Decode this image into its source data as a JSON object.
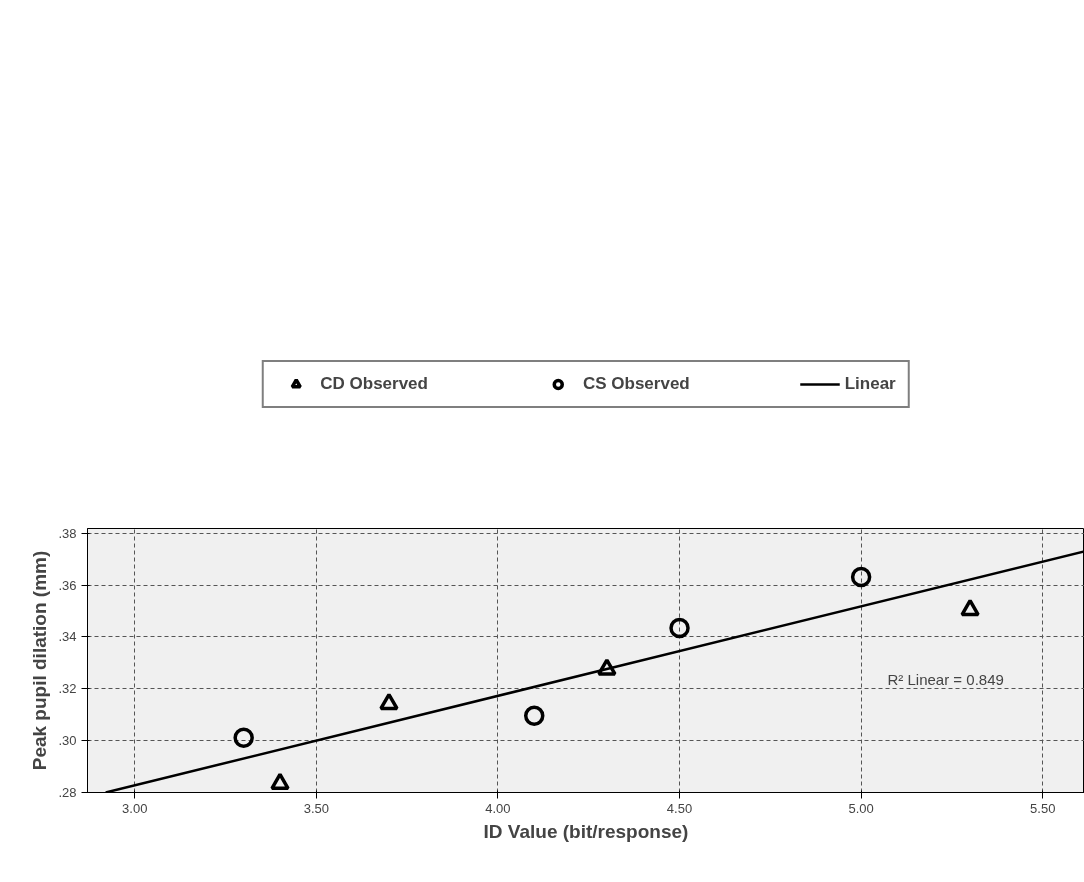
{
  "chart_data": {
    "type": "scatter",
    "xlabel": "ID Value (bit/response)",
    "ylabel": "Peak pupil dilation (mm)",
    "xlim": [
      2.87,
      5.615
    ],
    "ylim": [
      0.28,
      0.3818
    ],
    "xticks": [
      {
        "value": 3.0,
        "label": "3.00"
      },
      {
        "value": 3.5,
        "label": "3.50"
      },
      {
        "value": 4.0,
        "label": "4.00"
      },
      {
        "value": 4.5,
        "label": "4.50"
      },
      {
        "value": 5.0,
        "label": "5.00"
      },
      {
        "value": 5.5,
        "label": "5.50"
      }
    ],
    "yticks": [
      {
        "value": 0.28,
        "label": ".28"
      },
      {
        "value": 0.3,
        "label": ".30"
      },
      {
        "value": 0.32,
        "label": ".32"
      },
      {
        "value": 0.34,
        "label": ".34"
      },
      {
        "value": 0.36,
        "label": ".36"
      },
      {
        "value": 0.38,
        "label": ".38"
      }
    ],
    "grid": true,
    "legend": "top",
    "series": [
      {
        "name": "CD Observed",
        "marker": "triangle",
        "color": "#000000",
        "x": [
          3.4,
          3.7,
          4.3,
          5.3
        ],
        "values": [
          0.2834,
          0.3142,
          0.3275,
          0.3504
        ]
      },
      {
        "name": "CS Observed",
        "marker": "circle",
        "color": "#000000",
        "x": [
          3.3,
          4.1,
          4.5,
          5.0
        ],
        "values": [
          0.3011,
          0.3096,
          0.3434,
          0.3631
        ]
      },
      {
        "name": "Linear",
        "type": "line",
        "color": "#000000",
        "x": [
          2.92,
          5.615
        ],
        "values": [
          0.28,
          0.373
        ]
      }
    ],
    "annotations": [
      "R² Linear = 0.849"
    ]
  }
}
